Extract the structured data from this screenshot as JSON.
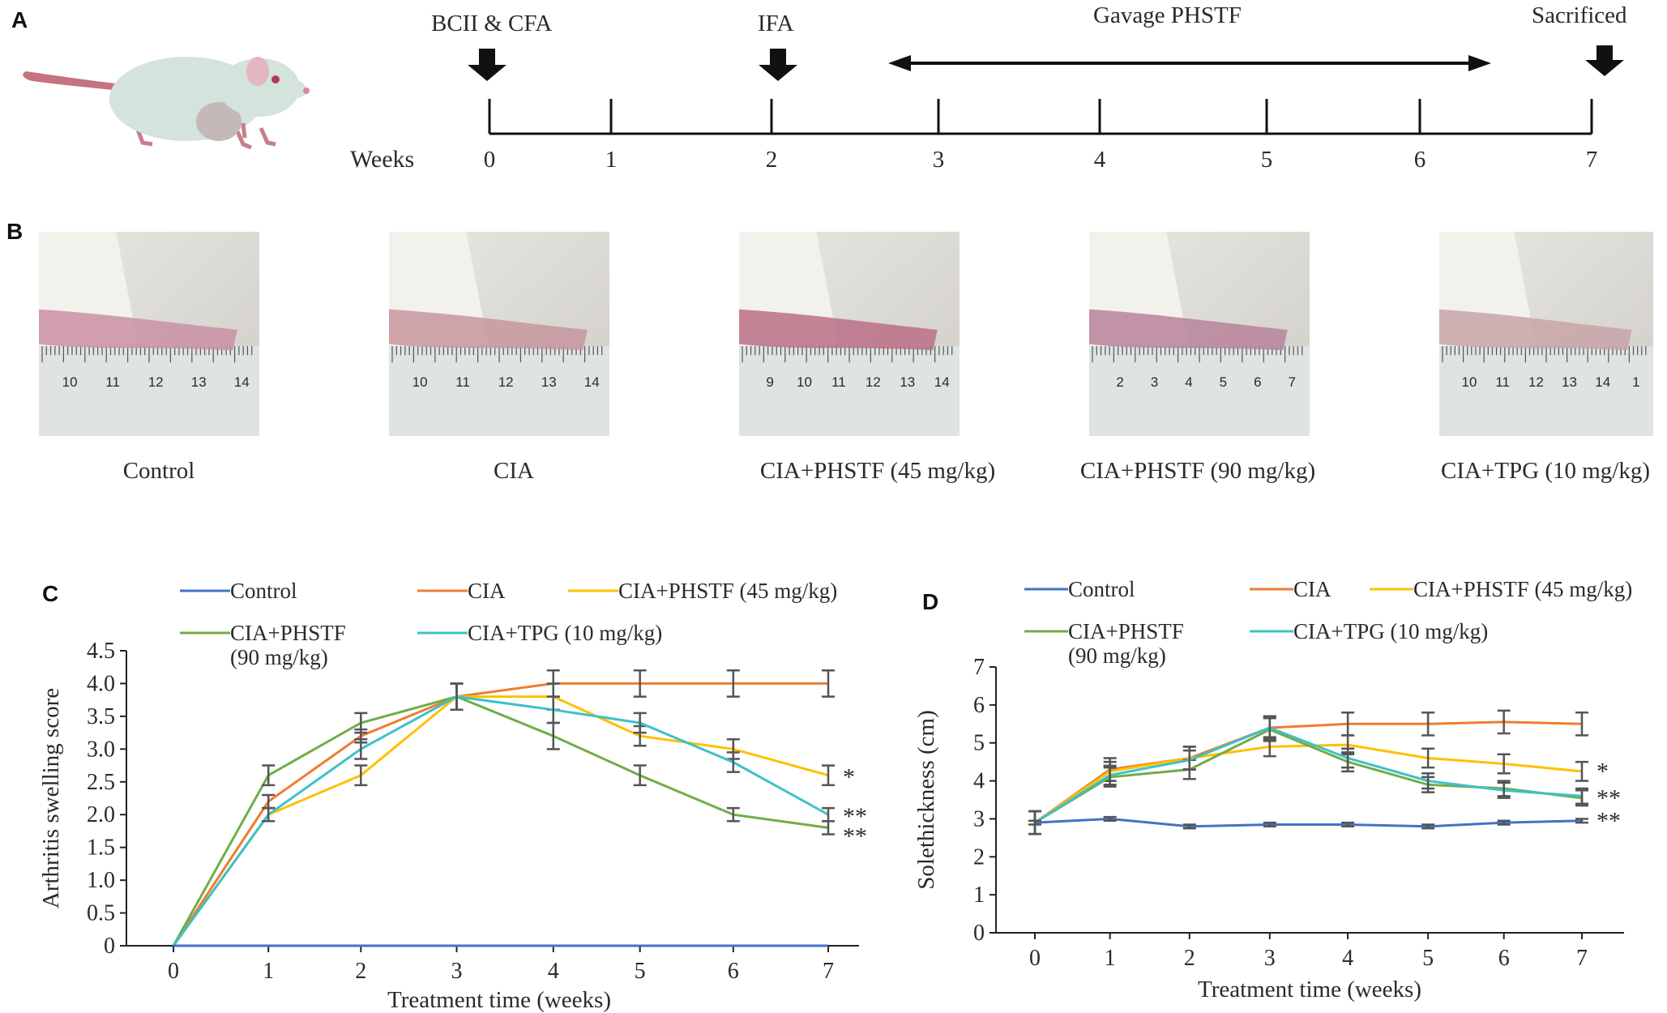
{
  "panel_labels": {
    "a": "A",
    "b": "B",
    "c": "C",
    "d": "D"
  },
  "timeline": {
    "weeks_label": "Weeks",
    "ticks": [
      "0",
      "1",
      "2",
      "3",
      "4",
      "5",
      "6",
      "7"
    ],
    "events": {
      "immunization": "BCII & CFA",
      "booster": "IFA",
      "treatment": "Gavage PHSTF",
      "end": "Sacrificed"
    }
  },
  "photos": [
    {
      "caption": "Control",
      "ruler": [
        "10",
        "11",
        "12",
        "13",
        "14"
      ],
      "tone": "#c98fa5"
    },
    {
      "caption": "CIA",
      "ruler": [
        "10",
        "11",
        "12",
        "13",
        "14"
      ],
      "tone": "#c7969f"
    },
    {
      "caption": "CIA+PHSTF (45 mg/kg)",
      "ruler": [
        "9",
        "10",
        "11",
        "12",
        "13",
        "14"
      ],
      "tone": "#bb6f86"
    },
    {
      "caption": "CIA+PHSTF (90 mg/kg)",
      "ruler": [
        "2",
        "3",
        "4",
        "5",
        "6",
        "7"
      ],
      "tone": "#b9839a"
    },
    {
      "caption": "CIA+TPG (10 mg/kg)",
      "ruler": [
        "10",
        "11",
        "12",
        "13",
        "14",
        "1"
      ],
      "tone": "#c8a5a8"
    }
  ],
  "chart_data": [
    {
      "type": "line",
      "panel": "C",
      "xlabel": "Treatment time (weeks)",
      "ylabel": "Arthritis swelling score",
      "x": [
        0,
        1,
        2,
        3,
        4,
        5,
        6,
        7
      ],
      "ylim": [
        0,
        4.5
      ],
      "yticks": [
        "0",
        "0.5",
        "1.0",
        "1.5",
        "2.0",
        "2.5",
        "3.0",
        "3.5",
        "4.0",
        "4.5"
      ],
      "series": [
        {
          "name": "Control",
          "color": "#4472c4",
          "values": [
            0,
            0,
            0,
            0,
            0,
            0,
            0,
            0
          ],
          "err": [
            0,
            0,
            0,
            0,
            0,
            0,
            0,
            0
          ]
        },
        {
          "name": "CIA",
          "color": "#ed7d31",
          "values": [
            0,
            2.2,
            3.2,
            3.8,
            4.0,
            4.0,
            4.0,
            4.0
          ],
          "err": [
            0,
            0.1,
            0.1,
            0.2,
            0.2,
            0.2,
            0.2,
            0.2
          ]
        },
        {
          "name": "CIA+PHSTF (45 mg/kg)",
          "color": "#ffc000",
          "values": [
            0,
            2.0,
            2.6,
            3.8,
            3.8,
            3.2,
            3.0,
            2.6
          ],
          "err": [
            0,
            0.1,
            0.15,
            0.2,
            0.2,
            0.15,
            0.15,
            0.15
          ]
        },
        {
          "name": "CIA+PHSTF (90 mg/kg)",
          "color": "#70ad47",
          "values": [
            0,
            2.6,
            3.4,
            3.8,
            3.2,
            2.6,
            2.0,
            1.8
          ],
          "err": [
            0,
            0.15,
            0.15,
            0.2,
            0.2,
            0.15,
            0.1,
            0.1
          ]
        },
        {
          "name": "CIA+TPG (10 mg/kg)",
          "color": "#3ec1c9",
          "values": [
            0,
            2.0,
            3.0,
            3.8,
            3.6,
            3.4,
            2.8,
            2.0
          ],
          "err": [
            0,
            0.1,
            0.15,
            0.2,
            0.2,
            0.15,
            0.15,
            0.1
          ]
        }
      ],
      "legend_labels": [
        "Control",
        "CIA",
        "CIA+PHSTF (45 mg/kg)",
        "CIA+PHSTF",
        "(90 mg/kg)",
        "CIA+TPG (10 mg/kg)"
      ],
      "significance": [
        {
          "text": "*",
          "y": 2.6
        },
        {
          "text": "**",
          "y": 2.0
        },
        {
          "text": "**",
          "y": 1.7
        }
      ]
    },
    {
      "type": "line",
      "panel": "D",
      "xlabel": "Treatment time (weeks)",
      "ylabel": "Solethickness (cm)",
      "x": [
        0,
        1,
        2,
        3,
        4,
        5,
        6,
        7
      ],
      "ylim": [
        0,
        7
      ],
      "yticks": [
        "0",
        "1",
        "2",
        "3",
        "4",
        "5",
        "6",
        "7"
      ],
      "series": [
        {
          "name": "Control",
          "color": "#4472c4",
          "values": [
            2.9,
            3.0,
            2.8,
            2.85,
            2.85,
            2.8,
            2.9,
            2.95
          ],
          "err": [
            0.05,
            0.05,
            0.05,
            0.05,
            0.05,
            0.05,
            0.05,
            0.05
          ]
        },
        {
          "name": "CIA",
          "color": "#ed7d31",
          "values": [
            2.9,
            4.3,
            4.6,
            5.4,
            5.5,
            5.5,
            5.55,
            5.5
          ],
          "err": [
            0.3,
            0.3,
            0.3,
            0.3,
            0.3,
            0.3,
            0.3,
            0.3
          ]
        },
        {
          "name": "CIA+PHSTF (45 mg/kg)",
          "color": "#ffc000",
          "values": [
            2.9,
            4.25,
            4.6,
            4.9,
            4.95,
            4.6,
            4.45,
            4.25
          ],
          "err": [
            0.3,
            0.25,
            0.3,
            0.25,
            0.25,
            0.25,
            0.25,
            0.25
          ]
        },
        {
          "name": "CIA+PHSTF (90 mg/kg)",
          "color": "#70ad47",
          "values": [
            2.9,
            4.1,
            4.3,
            5.35,
            4.5,
            3.9,
            3.8,
            3.55
          ],
          "err": [
            0.3,
            0.25,
            0.25,
            0.3,
            0.25,
            0.2,
            0.2,
            0.2
          ]
        },
        {
          "name": "CIA+TPG (10 mg/kg)",
          "color": "#3ec1c9",
          "values": [
            2.9,
            4.15,
            4.55,
            5.4,
            4.6,
            4.0,
            3.75,
            3.6
          ],
          "err": [
            0.3,
            0.25,
            0.25,
            0.3,
            0.25,
            0.2,
            0.2,
            0.2
          ]
        }
      ],
      "legend_labels": [
        "Control",
        "CIA",
        "CIA+PHSTF (45 mg/kg)",
        "CIA+PHSTF",
        "(90 mg/kg)",
        "CIA+TPG (10 mg/kg)"
      ],
      "significance": [
        {
          "text": "*",
          "y": 4.3
        },
        {
          "text": "**",
          "y": 3.6
        },
        {
          "text": "**",
          "y": 3.0
        }
      ]
    }
  ]
}
